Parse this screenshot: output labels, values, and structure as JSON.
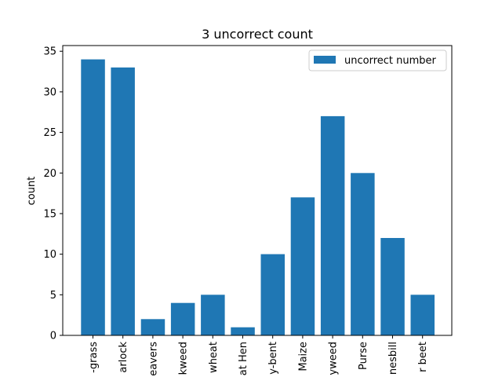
{
  "chart_data": {
    "type": "bar",
    "title": "3 uncorrect count",
    "xlabel": "",
    "ylabel": "count",
    "categories": [
      "-grass",
      "arlock",
      "eavers",
      "kweed",
      "wheat",
      "at Hen",
      "y-bent",
      "Maize",
      "yweed",
      "Purse",
      "nesbill",
      "r beet"
    ],
    "series": [
      {
        "name": "uncorrect number",
        "values": [
          34,
          33,
          2,
          4,
          5,
          1,
          10,
          17,
          27,
          20,
          12,
          5
        ]
      }
    ],
    "ylim": [
      0,
      35.7
    ],
    "yticks": [
      0,
      5,
      10,
      15,
      20,
      25,
      30,
      35
    ],
    "grid": false,
    "legend": "top-right",
    "colors": {
      "bar": "#1f77b4",
      "axis": "#000000",
      "background": "#ffffff"
    }
  }
}
